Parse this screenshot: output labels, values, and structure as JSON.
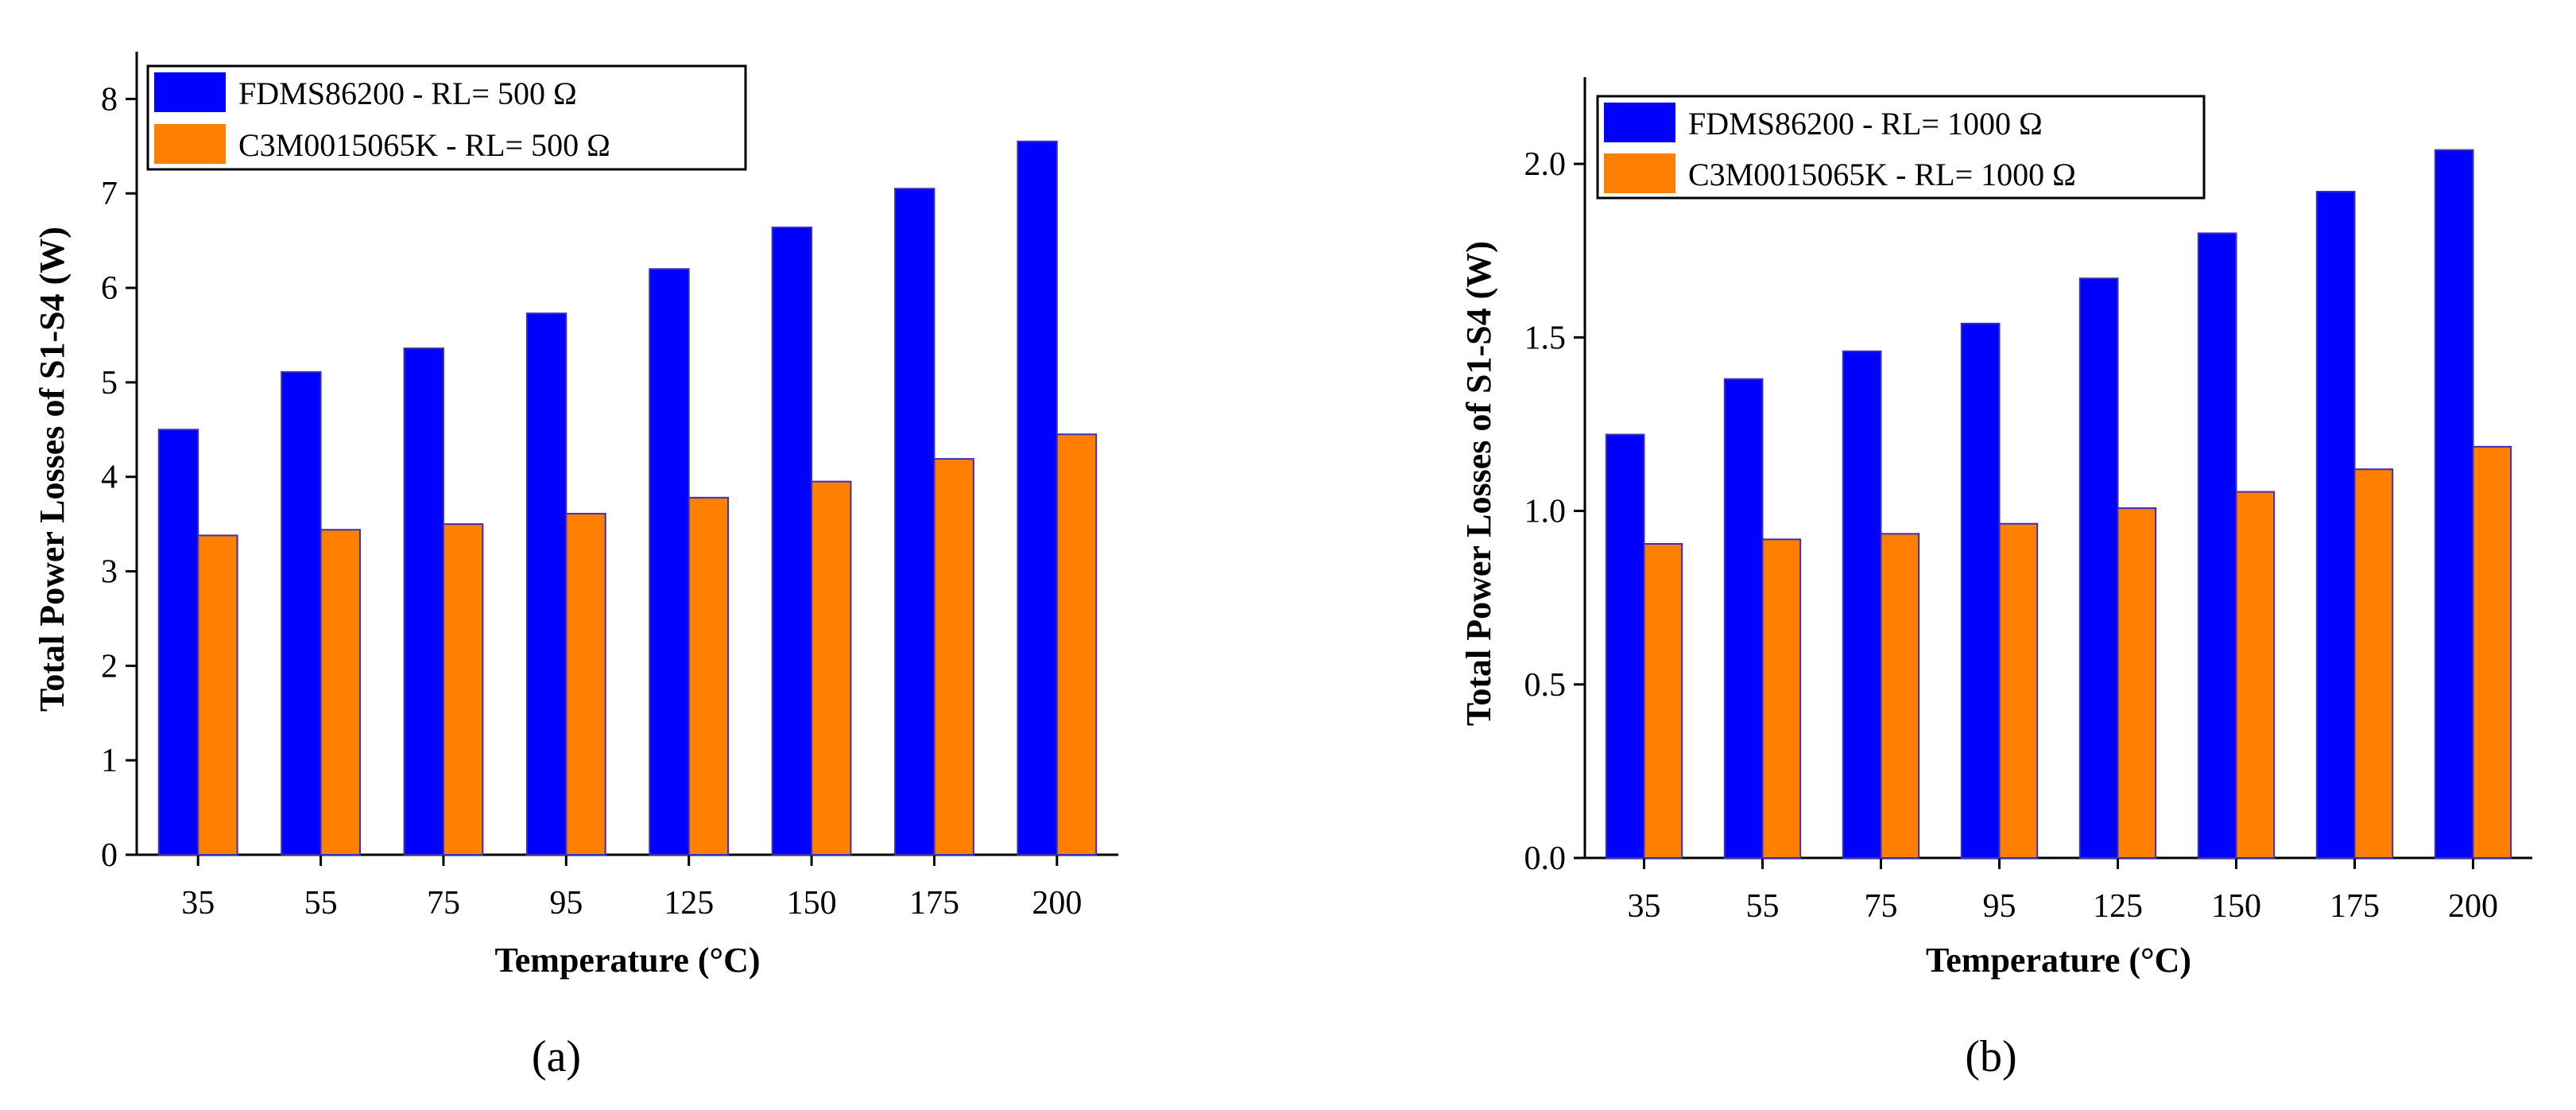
{
  "chart_data": [
    {
      "type": "bar",
      "panel": "(a)",
      "categories": [
        "35",
        "55",
        "75",
        "95",
        "125",
        "150",
        "175",
        "200"
      ],
      "series": [
        {
          "name": "FDMS86200 - RL= 500 Ω",
          "color": "#0000ff",
          "values": [
            4.5,
            5.11,
            5.36,
            5.73,
            6.2,
            6.64,
            7.05,
            7.55
          ]
        },
        {
          "name": "C3M0015065K - RL= 500 Ω",
          "color": "#ff8000",
          "values": [
            3.38,
            3.44,
            3.5,
            3.61,
            3.78,
            3.95,
            4.19,
            4.45
          ]
        }
      ],
      "xlabel": "Temperature (°C)",
      "ylabel": "Total Power Losses of S1-S4 (W)",
      "ylim": [
        0,
        8.5
      ],
      "yticks": [
        0,
        1,
        2,
        3,
        4,
        5,
        6,
        7,
        8
      ],
      "ytick_labels": [
        "0",
        "1",
        "2",
        "3",
        "4",
        "5",
        "6",
        "7",
        "8"
      ],
      "legend": "top-left",
      "grid": false
    },
    {
      "type": "bar",
      "panel": "(b)",
      "categories": [
        "35",
        "55",
        "75",
        "95",
        "125",
        "150",
        "175",
        "200"
      ],
      "series": [
        {
          "name": "FDMS86200 - RL= 1000 Ω",
          "color": "#0000ff",
          "values": [
            1.22,
            1.38,
            1.46,
            1.54,
            1.67,
            1.8,
            1.92,
            2.04
          ]
        },
        {
          "name": "C3M0015065K - RL= 1000 Ω",
          "color": "#ff8000",
          "values": [
            0.905,
            0.918,
            0.934,
            0.963,
            1.008,
            1.055,
            1.12,
            1.185
          ]
        }
      ],
      "xlabel": "Temperature (°C)",
      "ylabel": "Total Power Losses of S1-S4 (W)",
      "ylim": [
        0,
        2.25
      ],
      "yticks": [
        0,
        0.5,
        1,
        1.5,
        2
      ],
      "ytick_labels": [
        "0.0",
        "0.5",
        "1.0",
        "1.5",
        "2.0"
      ],
      "legend": "top-left",
      "grid": false
    }
  ]
}
